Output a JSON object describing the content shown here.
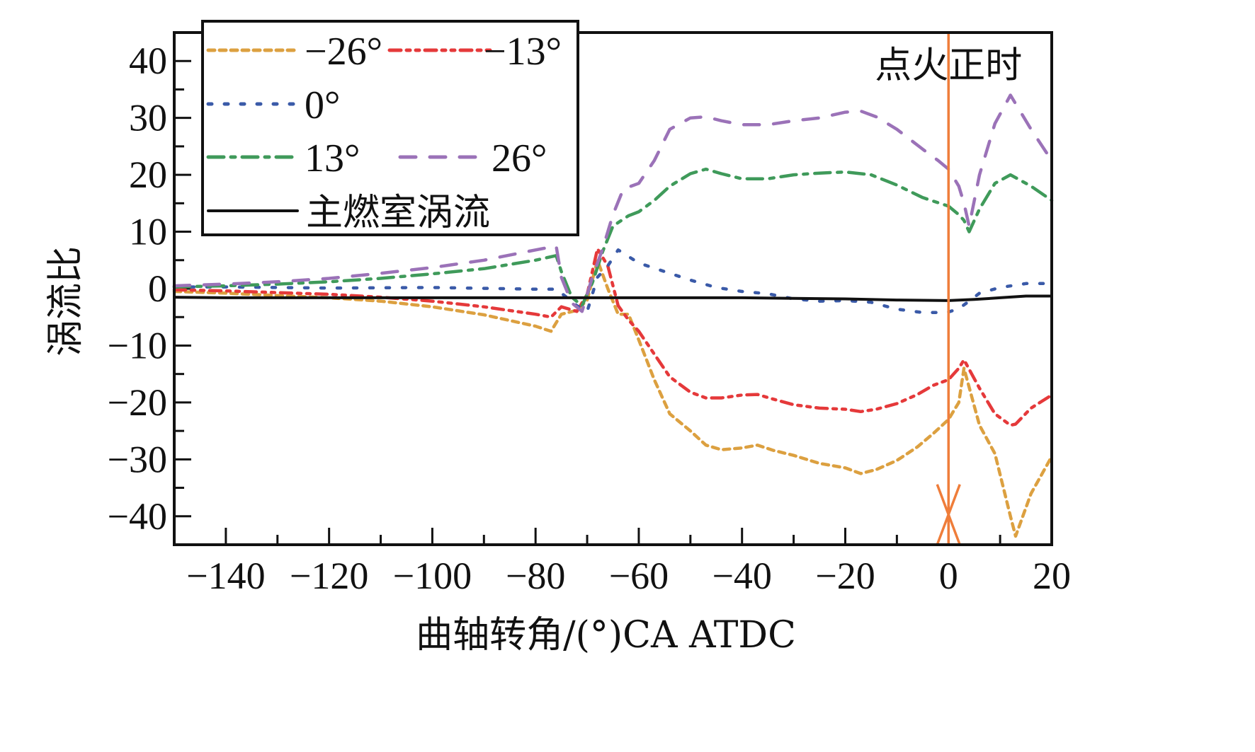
{
  "chart_data": {
    "type": "line",
    "title": "",
    "xlabel": "曲轴转角/(°)CA ATDC",
    "ylabel": "涡流比",
    "xlim": [
      -150,
      20
    ],
    "ylim": [
      -45,
      45
    ],
    "xticks": [
      -140,
      -120,
      -100,
      -80,
      -60,
      -40,
      -20,
      0,
      20
    ],
    "yticks": [
      40,
      30,
      20,
      10,
      0,
      -10,
      -20,
      -30,
      -40
    ],
    "xtick_labels": [
      "−140",
      "−120",
      "−100",
      "−80",
      "−60",
      "−40",
      "−20",
      "0",
      "20"
    ],
    "ytick_labels": [
      "40",
      "30",
      "20",
      "10",
      "0",
      "−10",
      "−20",
      "−30",
      "−40"
    ],
    "grid": false,
    "legend_position": "top-left",
    "annotation": {
      "label": "点火正时",
      "x": 0,
      "color": "#ef7d3a"
    },
    "series": [
      {
        "name": "−26°",
        "color": "#dca040",
        "style": "dashed",
        "x": [
          -150,
          -140,
          -130,
          -120,
          -110,
          -100,
          -90,
          -80,
          -77,
          -75,
          -72,
          -70,
          -68,
          -66,
          -64,
          -62,
          -60,
          -57,
          -54,
          -50,
          -47,
          -44,
          -40,
          -37,
          -34,
          -30,
          -25,
          -20,
          -17,
          -14,
          -10,
          -6,
          -3,
          0,
          2,
          3,
          6,
          9,
          12,
          13,
          16,
          20
        ],
        "y": [
          -0.5,
          -0.8,
          -1.2,
          -1.6,
          -2.2,
          -3.2,
          -4.6,
          -6.6,
          -7.5,
          -4.5,
          -3.8,
          -2,
          5,
          0,
          -4.5,
          -4.5,
          -9,
          -16,
          -22,
          -25,
          -27.5,
          -28.3,
          -28,
          -27.5,
          -28.4,
          -29.3,
          -30.7,
          -31.5,
          -32.5,
          -31.8,
          -30.2,
          -27.8,
          -25.5,
          -23,
          -20,
          -14,
          -24,
          -29,
          -40,
          -43.5,
          -36,
          -29.5
        ]
      },
      {
        "name": "−13°",
        "color": "#e5393a",
        "style": "dash-dot-dot",
        "x": [
          -150,
          -140,
          -130,
          -120,
          -110,
          -100,
          -90,
          -80,
          -77,
          -75,
          -72,
          -70,
          -68,
          -66,
          -64,
          -62,
          -60,
          -57,
          -54,
          -50,
          -47,
          -44,
          -40,
          -37,
          -34,
          -30,
          -25,
          -20,
          -17,
          -14,
          -10,
          -6,
          -3,
          0,
          2,
          3,
          6,
          9,
          12,
          13,
          16,
          20
        ],
        "y": [
          -0.2,
          -0.4,
          -0.7,
          -1,
          -1.5,
          -2.2,
          -3.2,
          -4.5,
          -5,
          -3.2,
          -4,
          -1,
          7,
          4,
          -3,
          -5.5,
          -7.5,
          -11.5,
          -15.5,
          -18.2,
          -19.2,
          -19.2,
          -18.7,
          -18.6,
          -19.4,
          -20.4,
          -21,
          -21.2,
          -21.6,
          -21.2,
          -20.2,
          -18.6,
          -17,
          -16,
          -14,
          -12.5,
          -17.5,
          -22,
          -24,
          -23.8,
          -21,
          -18.7
        ]
      },
      {
        "name": "0°",
        "color": "#3a5aa8",
        "style": "dotted",
        "x": [
          -150,
          -140,
          -120,
          -100,
          -80,
          -76,
          -74,
          -72,
          -70,
          -68,
          -66,
          -64,
          -60,
          -55,
          -50,
          -45,
          -40,
          -35,
          -30,
          -25,
          -20,
          -15,
          -10,
          -5,
          -2,
          0,
          2,
          4,
          6,
          10,
          15,
          20
        ],
        "y": [
          0.3,
          0.3,
          0.1,
          0.2,
          -0.1,
          -0.1,
          -1.5,
          -3,
          -4,
          2,
          4,
          6.8,
          4.5,
          3,
          1.5,
          0.2,
          -0.5,
          -0.9,
          -1.8,
          -2.2,
          -2.1,
          -2.4,
          -3.6,
          -4.2,
          -4.2,
          -4.1,
          -3.5,
          -2.2,
          -0.8,
          0.2,
          0.9,
          0.9
        ]
      },
      {
        "name": "13°",
        "color": "#3f9a5a",
        "style": "dash-dot",
        "x": [
          -150,
          -140,
          -130,
          -120,
          -110,
          -100,
          -90,
          -80,
          -76,
          -75,
          -73,
          -71,
          -69,
          -67,
          -65,
          -62,
          -60,
          -57,
          -54,
          -50,
          -47,
          -44,
          -40,
          -35,
          -30,
          -25,
          -20,
          -15,
          -10,
          -5,
          0,
          2,
          3,
          4,
          6,
          9,
          12,
          16,
          20
        ],
        "y": [
          0.3,
          0.5,
          0.8,
          1.2,
          1.8,
          2.6,
          3.5,
          5,
          5.8,
          3,
          -1.5,
          -3,
          1,
          6.5,
          11,
          12.8,
          13.5,
          15.5,
          18,
          20.2,
          21,
          20.2,
          19.3,
          19.3,
          20,
          20.3,
          20.5,
          20,
          18.2,
          16,
          14.5,
          13,
          12,
          10,
          14,
          18.5,
          20,
          18,
          15.5
        ]
      },
      {
        "name": "26°",
        "color": "#9b72b8",
        "style": "long-dashed",
        "x": [
          -150,
          -140,
          -130,
          -120,
          -110,
          -100,
          -90,
          -80,
          -76,
          -75,
          -73,
          -71,
          -69,
          -67,
          -65,
          -63,
          -60,
          -57,
          -54,
          -50,
          -47,
          -44,
          -40,
          -35,
          -30,
          -25,
          -20,
          -17,
          -14,
          -10,
          -5,
          -2,
          0,
          2,
          3,
          4,
          6,
          9,
          12,
          16,
          20
        ],
        "y": [
          0.5,
          0.8,
          1.2,
          1.8,
          2.7,
          3.7,
          5,
          6.8,
          7.5,
          2,
          -2.5,
          -4,
          2,
          7,
          13,
          17.5,
          18.5,
          22.5,
          28,
          30,
          30.2,
          29.5,
          28.8,
          28.8,
          29.5,
          30,
          31,
          31.2,
          30.2,
          28,
          24.5,
          22.5,
          21,
          18,
          15,
          11,
          20,
          29,
          34,
          28,
          22.5
        ]
      },
      {
        "name": "主燃室涡流",
        "color": "#111111",
        "style": "solid",
        "x": [
          -150,
          -140,
          -120,
          -100,
          -80,
          -60,
          -40,
          -30,
          -20,
          -10,
          0,
          5,
          10,
          15,
          20
        ],
        "y": [
          -1.5,
          -1.6,
          -1.6,
          -1.6,
          -1.6,
          -1.6,
          -1.6,
          -1.7,
          -1.8,
          -2,
          -2.1,
          -1.9,
          -1.6,
          -1.3,
          -1.3
        ]
      }
    ]
  }
}
